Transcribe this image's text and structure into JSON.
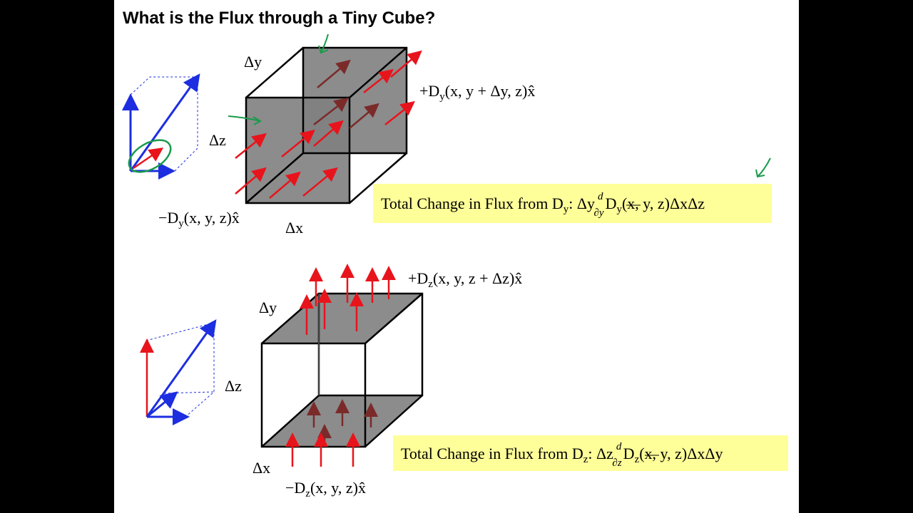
{
  "title": "What is the Flux through a Tiny Cube?",
  "top": {
    "dy": "Δy",
    "dz": "Δz",
    "dx": "Δx",
    "plus_flux": [
      "+D",
      "y",
      "(x, y + Δy, z)x̂"
    ],
    "minus_flux": [
      "−D",
      "y",
      "(x, y, z)x̂"
    ],
    "total": [
      "Total Change in Flux from D",
      "y",
      ":  Δy",
      "d",
      "∂y",
      "D",
      "y",
      "(x, y, z)ΔxΔz"
    ]
  },
  "bottom": {
    "dy": "Δy",
    "dz": "Δz",
    "dx": "Δx",
    "plus_flux": [
      "+D",
      "z",
      "(x, y, z + Δz)x̂"
    ],
    "minus_flux": [
      "−D",
      "z",
      "(x, y, z)x̂"
    ],
    "total": [
      "Total Change in Flux from D",
      "z",
      ":  Δz",
      "d",
      "∂z",
      "D",
      "z",
      "(x, y, z)ΔxΔy"
    ]
  }
}
